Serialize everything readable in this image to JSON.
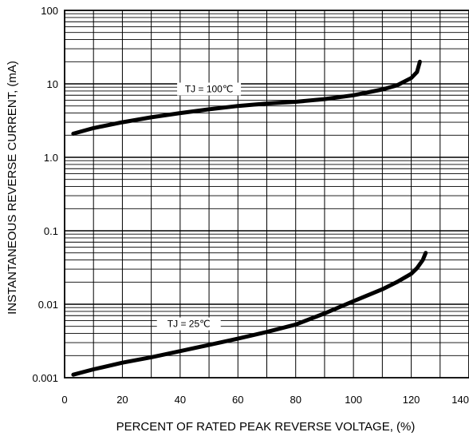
{
  "chart_data": {
    "type": "line",
    "title": "",
    "xlabel": "PERCENT OF RATED PEAK REVERSE VOLTAGE, (%)",
    "ylabel": "INSTANTANEOUS REVERSE CURRENT, (mA)",
    "xlim": [
      0,
      140
    ],
    "ylim": [
      0.001,
      100
    ],
    "y_scale": "log",
    "grid": true,
    "x_ticks": [
      "0",
      "20",
      "40",
      "60",
      "80",
      "100",
      "120",
      "140"
    ],
    "y_ticks": [
      "0.001",
      "0.01",
      "0.1",
      "1.0",
      "10",
      "100"
    ],
    "series": [
      {
        "name": "TJ = 100℃",
        "x": [
          3,
          10,
          20,
          30,
          40,
          50,
          60,
          70,
          80,
          90,
          100,
          110,
          115,
          120,
          122,
          123
        ],
        "values": [
          2.1,
          2.5,
          3.0,
          3.5,
          4.0,
          4.5,
          5.0,
          5.4,
          5.7,
          6.2,
          7.0,
          8.4,
          9.5,
          12.0,
          14.5,
          20.0
        ]
      },
      {
        "name": "TJ = 25℃",
        "x": [
          3,
          10,
          20,
          30,
          40,
          50,
          60,
          70,
          80,
          90,
          100,
          110,
          115,
          120,
          122,
          124,
          125
        ],
        "values": [
          0.0011,
          0.0013,
          0.0016,
          0.0019,
          0.0023,
          0.0028,
          0.0034,
          0.0042,
          0.0053,
          0.0075,
          0.011,
          0.016,
          0.02,
          0.026,
          0.031,
          0.04,
          0.05
        ]
      }
    ],
    "annotations": [
      {
        "text": "TJ = 100℃",
        "x": 50,
        "y": 8.5
      },
      {
        "text": "TJ = 25℃",
        "x": 43,
        "y": 0.0054
      }
    ]
  }
}
